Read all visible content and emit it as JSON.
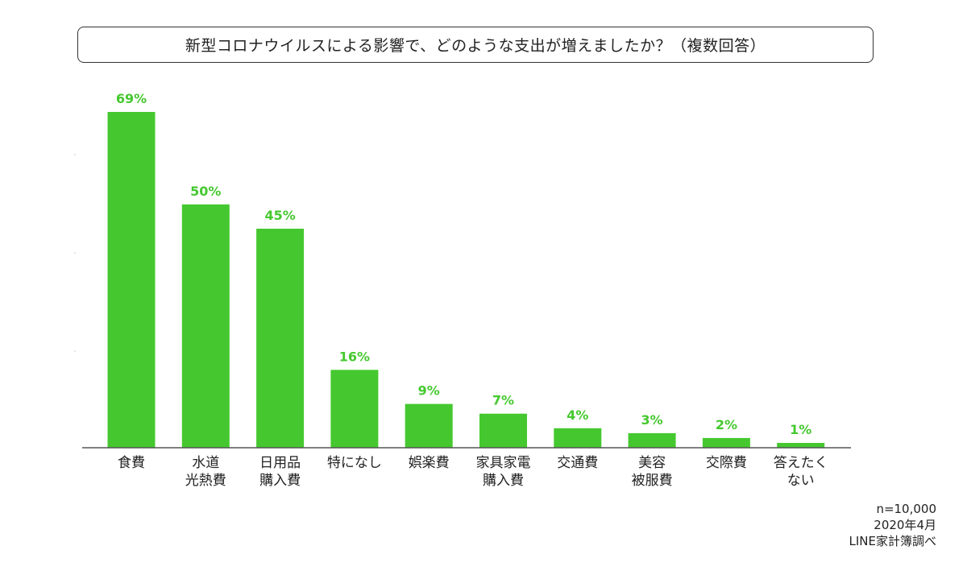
{
  "title": "新型コロナウイルスによる影響で、どのような支出が増えましたか？（複数回答）",
  "colors": {
    "bar": "#45c82f",
    "value_label": "#45c82f",
    "axis": "#555555",
    "text": "#222222"
  },
  "chart_data": {
    "type": "bar",
    "title": "新型コロナウイルスによる影響で、どのような支出が増えましたか？（複数回答）",
    "categories": [
      [
        "食費"
      ],
      [
        "水道",
        "光熱費"
      ],
      [
        "日用品",
        "購入費"
      ],
      [
        "特になし"
      ],
      [
        "娯楽費"
      ],
      [
        "家具家電",
        "購入費"
      ],
      [
        "交通費"
      ],
      [
        "美容",
        "被服費"
      ],
      [
        "交際費"
      ],
      [
        "答えたく",
        "ない"
      ]
    ],
    "values": [
      69,
      50,
      45,
      16,
      9,
      7,
      4,
      3,
      2,
      1
    ],
    "value_labels": [
      "69%",
      "50%",
      "45%",
      "16%",
      "9%",
      "7%",
      "4%",
      "3%",
      "2%",
      "1%"
    ],
    "unit": "%",
    "ylim": [
      0,
      69
    ],
    "grid": false,
    "legend": "none"
  },
  "footer": {
    "sample": "n=10,000",
    "date": "2020年4月",
    "source": "LINE家計簿調べ"
  }
}
